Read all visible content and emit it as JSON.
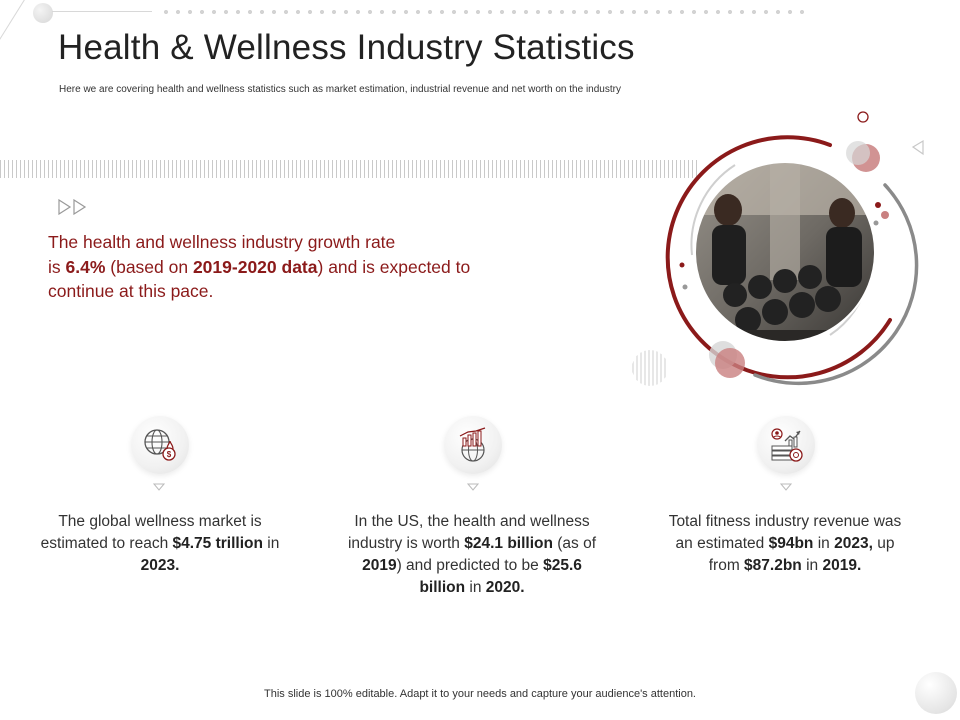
{
  "slide": {
    "title": "Health & Wellness Industry Statistics",
    "subtitle": "Here we are covering health and wellness statistics such as market estimation, industrial revenue and net worth on the industry"
  },
  "growth": {
    "line1": "The health and wellness industry growth rate",
    "line2_prefix": "is ",
    "rate": "6.4%",
    "line2_mid": " (based on ",
    "period": "2019-2020 data",
    "line2_suffix": ")  and is expected to",
    "line3": "continue at this pace."
  },
  "stats": [
    {
      "icon": "globe-dollar-icon",
      "t1": "The global wellness market is estimated to reach ",
      "b1": "$4.75 trillion",
      "t2": " in ",
      "b2": "2023."
    },
    {
      "icon": "growth-chart-globe-icon",
      "t1": "In the US, the health and wellness industry is worth ",
      "b1": "$24.1 billion",
      "t2": " (as of ",
      "b2": "2019",
      "t3": ") and predicted to be ",
      "b3": "$25.6 billion",
      "t4": " in ",
      "b4": "2020."
    },
    {
      "icon": "revenue-money-icon",
      "t1": "Total fitness industry revenue was an estimated ",
      "b1": "$94bn",
      "t2": " in ",
      "b2": "2023,",
      "t3": " up from ",
      "b3": "$87.2bn",
      "t4": " in ",
      "b4": "2019."
    }
  ],
  "footer": "This slide is 100% editable. Adapt it to your needs and capture your audience's attention.",
  "colors": {
    "accent": "#8b1a1a",
    "accent_light": "#c98080",
    "grey": "#bdbdbd"
  }
}
